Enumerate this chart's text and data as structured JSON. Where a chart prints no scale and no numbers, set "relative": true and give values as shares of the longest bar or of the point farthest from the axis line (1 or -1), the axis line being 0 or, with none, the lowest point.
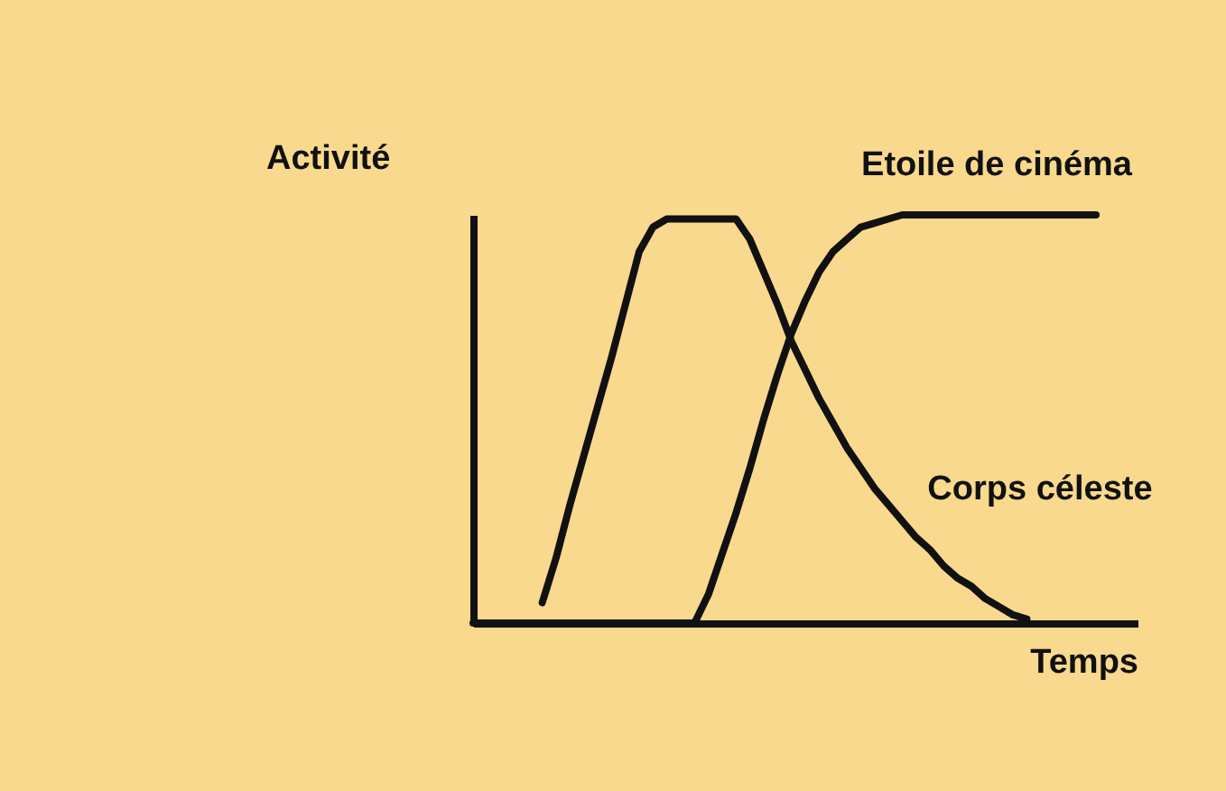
{
  "chart_data": {
    "type": "line",
    "relative": true,
    "xlabel": "Temps",
    "ylabel": "Activité",
    "legend": false,
    "categories": [
      null,
      null,
      null,
      null,
      null,
      null,
      null,
      null,
      null,
      null,
      null,
      null,
      null,
      null,
      null,
      null,
      null,
      null,
      null,
      null,
      null,
      null,
      null,
      null,
      null,
      null,
      null,
      null,
      null,
      null,
      null,
      null,
      null,
      null,
      null,
      null,
      null,
      null,
      null,
      null,
      null,
      null,
      null,
      null,
      null,
      null,
      null,
      null,
      null
    ],
    "series": [
      {
        "name": "Corps céleste",
        "color": "#111111",
        "values": [
          null,
          null,
          null,
          null,
          null,
          0.05,
          0.16,
          0.29,
          0.41,
          0.53,
          0.65,
          0.78,
          0.91,
          0.97,
          0.99,
          0.99,
          0.99,
          0.99,
          0.99,
          0.99,
          0.94,
          0.86,
          0.78,
          0.69,
          0.62,
          0.55,
          0.49,
          0.43,
          0.38,
          0.33,
          0.29,
          0.25,
          0.21,
          0.18,
          0.14,
          0.11,
          0.09,
          0.06,
          0.04,
          0.02,
          0.01,
          null,
          null,
          null,
          null,
          null,
          null,
          null,
          null
        ]
      },
      {
        "name": "Etoile de cinéma",
        "color": "#111111",
        "values": [
          0,
          0,
          0,
          0,
          0,
          0,
          0,
          0,
          0,
          0,
          0,
          0,
          0,
          0,
          0,
          0,
          0,
          0.07,
          0.17,
          0.27,
          0.38,
          0.5,
          0.61,
          0.71,
          0.79,
          0.86,
          0.91,
          0.94,
          0.97,
          0.98,
          0.99,
          1,
          1,
          1,
          1,
          1,
          1,
          1,
          1,
          1,
          1,
          1,
          1,
          1,
          1,
          1,
          null,
          null,
          null
        ]
      }
    ]
  }
}
